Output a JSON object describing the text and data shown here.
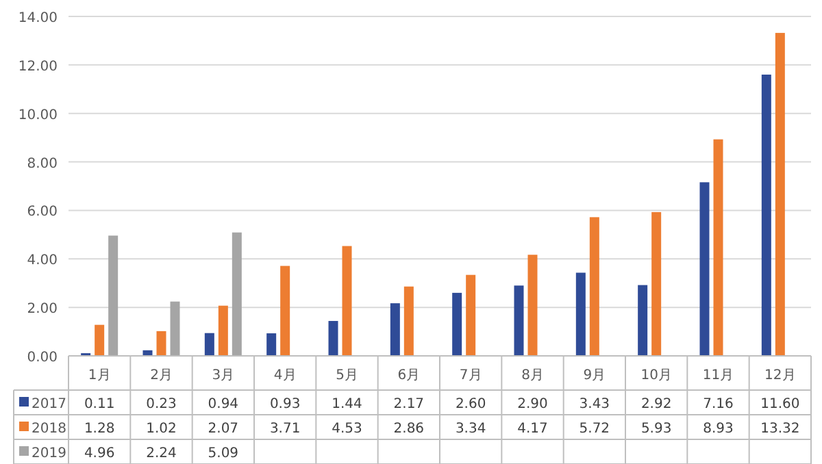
{
  "chart_data": {
    "type": "bar",
    "categories": [
      "1月",
      "2月",
      "3月",
      "4月",
      "5月",
      "6月",
      "7月",
      "8月",
      "9月",
      "10月",
      "11月",
      "12月"
    ],
    "series": [
      {
        "name": "2017",
        "color": "#2f4b97",
        "values": [
          0.11,
          0.23,
          0.94,
          0.93,
          1.44,
          2.17,
          2.6,
          2.9,
          3.43,
          2.92,
          7.16,
          11.6
        ],
        "value_labels": [
          "0.11",
          "0.23",
          "0.94",
          "0.93",
          "1.44",
          "2.17",
          "2.60",
          "2.90",
          "3.43",
          "2.92",
          "7.16",
          "11.60"
        ]
      },
      {
        "name": "2018",
        "color": "#ed7d31",
        "values": [
          1.28,
          1.02,
          2.07,
          3.71,
          4.53,
          2.86,
          3.34,
          4.17,
          5.72,
          5.93,
          8.93,
          13.32
        ],
        "value_labels": [
          "1.28",
          "1.02",
          "2.07",
          "3.71",
          "4.53",
          "2.86",
          "3.34",
          "4.17",
          "5.72",
          "5.93",
          "8.93",
          "13.32"
        ]
      },
      {
        "name": "2019",
        "color": "#a5a5a5",
        "values": [
          4.96,
          2.24,
          5.09,
          null,
          null,
          null,
          null,
          null,
          null,
          null,
          null,
          null
        ],
        "value_labels": [
          "4.96",
          "2.24",
          "5.09",
          null,
          null,
          null,
          null,
          null,
          null,
          null,
          null,
          null
        ]
      }
    ],
    "ylim": [
      0,
      14
    ],
    "yticks": [
      {
        "value": 0,
        "label": "0.00"
      },
      {
        "value": 2,
        "label": "2.00"
      },
      {
        "value": 4,
        "label": "4.00"
      },
      {
        "value": 6,
        "label": "6.00"
      },
      {
        "value": 8,
        "label": "8.00"
      },
      {
        "value": 10,
        "label": "10.00"
      },
      {
        "value": 12,
        "label": "12.00"
      },
      {
        "value": 14,
        "label": "14.00"
      }
    ],
    "grid": "y",
    "legend": "bottom"
  }
}
